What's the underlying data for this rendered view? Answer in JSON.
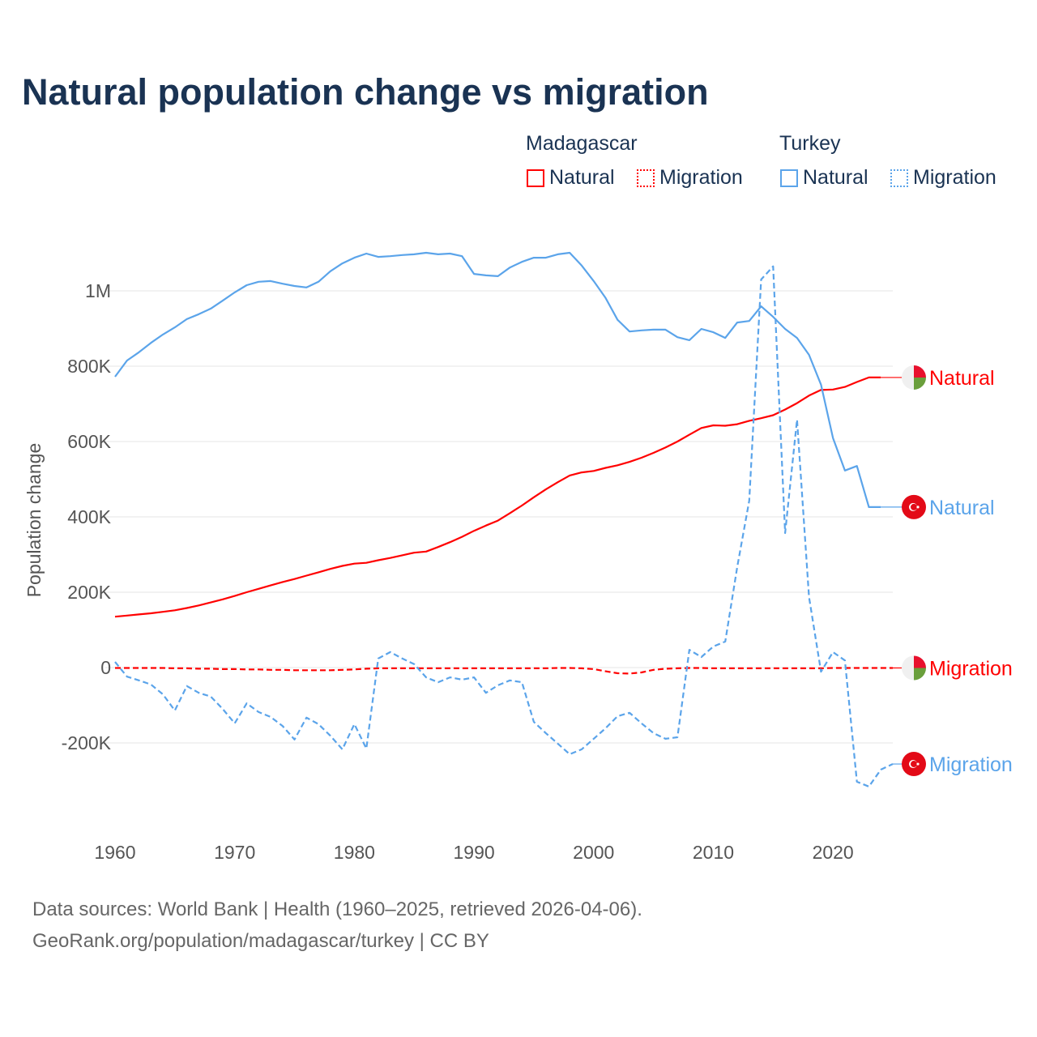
{
  "chart_data": {
    "type": "line",
    "title": "Natural population change vs migration",
    "ylabel": "Population change",
    "xlabel": "",
    "xlim": [
      1960,
      2025
    ],
    "ylim": [
      -400000,
      1150000
    ],
    "x_ticks": [
      1960,
      1970,
      1980,
      1990,
      2000,
      2010,
      2020
    ],
    "y_ticks": [
      {
        "value": -200000,
        "label": "-200K"
      },
      {
        "value": 0,
        "label": "0"
      },
      {
        "value": 200000,
        "label": "200K"
      },
      {
        "value": 400000,
        "label": "400K"
      },
      {
        "value": 600000,
        "label": "600K"
      },
      {
        "value": 800000,
        "label": "800K"
      },
      {
        "value": 1000000,
        "label": "1M"
      }
    ],
    "grid": true,
    "legend": {
      "placement": "top-right",
      "groups": [
        {
          "name": "Madagascar",
          "items": [
            "Natural",
            "Migration"
          ]
        },
        {
          "name": "Turkey",
          "items": [
            "Natural",
            "Migration"
          ]
        }
      ]
    },
    "x": [
      1960,
      1961,
      1962,
      1963,
      1964,
      1965,
      1966,
      1967,
      1968,
      1969,
      1970,
      1971,
      1972,
      1973,
      1974,
      1975,
      1976,
      1977,
      1978,
      1979,
      1980,
      1981,
      1982,
      1983,
      1984,
      1985,
      1986,
      1987,
      1988,
      1989,
      1990,
      1991,
      1992,
      1993,
      1994,
      1995,
      1996,
      1997,
      1998,
      1999,
      2000,
      2001,
      2002,
      2003,
      2004,
      2005,
      2006,
      2007,
      2008,
      2009,
      2010,
      2011,
      2012,
      2013,
      2014,
      2015,
      2016,
      2017,
      2018,
      2019,
      2020,
      2021,
      2022,
      2023,
      2024,
      2025
    ],
    "series": [
      {
        "name": "Natural",
        "country": "Madagascar",
        "color": "#ff0000",
        "dash": false,
        "end_label": "Natural",
        "values": [
          135,
          138,
          141,
          144,
          148,
          152,
          158,
          165,
          173,
          181,
          190,
          200,
          209,
          218,
          227,
          235,
          244,
          253,
          262,
          270,
          276,
          278,
          285,
          291,
          298,
          305,
          308,
          320,
          333,
          347,
          363,
          377,
          390,
          410,
          430,
          452,
          473,
          492,
          510,
          518,
          522,
          530,
          537,
          546,
          557,
          570,
          584,
          600,
          618,
          636,
          643,
          642,
          646,
          655,
          662,
          670,
          685,
          702,
          722,
          737,
          738,
          745,
          758,
          770,
          770,
          null
        ]
      },
      {
        "name": "Migration",
        "country": "Madagascar",
        "color": "#ff0000",
        "dash": true,
        "end_label": "Migration",
        "values": [
          -1,
          -1,
          -1,
          -1,
          -1,
          -2,
          -2,
          -3,
          -3,
          -4,
          -4,
          -5,
          -5,
          -6,
          -6,
          -7,
          -7,
          -7,
          -7,
          -6,
          -5,
          -3,
          -2,
          -2,
          -2,
          -2,
          -2,
          -2,
          -2,
          -2,
          -2,
          -2,
          -2,
          -2,
          -2,
          -2,
          -2,
          -1,
          -1,
          -2,
          -4,
          -10,
          -15,
          -16,
          -13,
          -6,
          -3,
          -2,
          -1,
          -1,
          -2,
          -2,
          -2,
          -2,
          -2,
          -2,
          -2,
          -2,
          -2,
          -2,
          -1,
          -1,
          -1,
          -1,
          -1,
          -1
        ]
      },
      {
        "name": "Natural",
        "country": "Turkey",
        "color": "#5ba4ea",
        "dash": false,
        "end_label": "Natural",
        "values": [
          772,
          815,
          837,
          862,
          884,
          903,
          925,
          938,
          953,
          974,
          996,
          1015,
          1024,
          1026,
          1019,
          1013,
          1009,
          1024,
          1052,
          1073,
          1088,
          1099,
          1090,
          1092,
          1095,
          1097,
          1101,
          1097,
          1099,
          1092,
          1045,
          1041,
          1039,
          1062,
          1077,
          1088,
          1088,
          1097,
          1101,
          1067,
          1026,
          981,
          923,
          892,
          895,
          897,
          897,
          877,
          869,
          899,
          890,
          875,
          916,
          920,
          959,
          931,
          899,
          875,
          830,
          751,
          609,
          523,
          535,
          426,
          426,
          null
        ]
      },
      {
        "name": "Migration",
        "country": "Turkey",
        "color": "#5ba4ea",
        "dash": true,
        "end_label": "Migration",
        "values": [
          15,
          -24,
          -34,
          -45,
          -71,
          -114,
          -49,
          -67,
          -77,
          -110,
          -148,
          -95,
          -118,
          -131,
          -155,
          -191,
          -133,
          -150,
          -181,
          -217,
          -150,
          -215,
          24,
          41,
          24,
          9,
          -26,
          -39,
          -26,
          -32,
          -26,
          -67,
          -47,
          -34,
          -39,
          -144,
          -174,
          -202,
          -230,
          -217,
          -189,
          -161,
          -129,
          -120,
          -148,
          -174,
          -189,
          -185,
          47,
          28,
          56,
          69,
          267,
          443,
          1030,
          1065,
          357,
          658,
          187,
          -11,
          41,
          19,
          -303,
          -316,
          -271,
          -256
        ]
      }
    ],
    "values_unit": "thousands"
  },
  "sources": {
    "line1": "Data sources: World Bank | Health (1960–2025, retrieved 2026-04-06).",
    "line2": "GeoRank.org/population/madagascar/turkey | CC BY"
  }
}
